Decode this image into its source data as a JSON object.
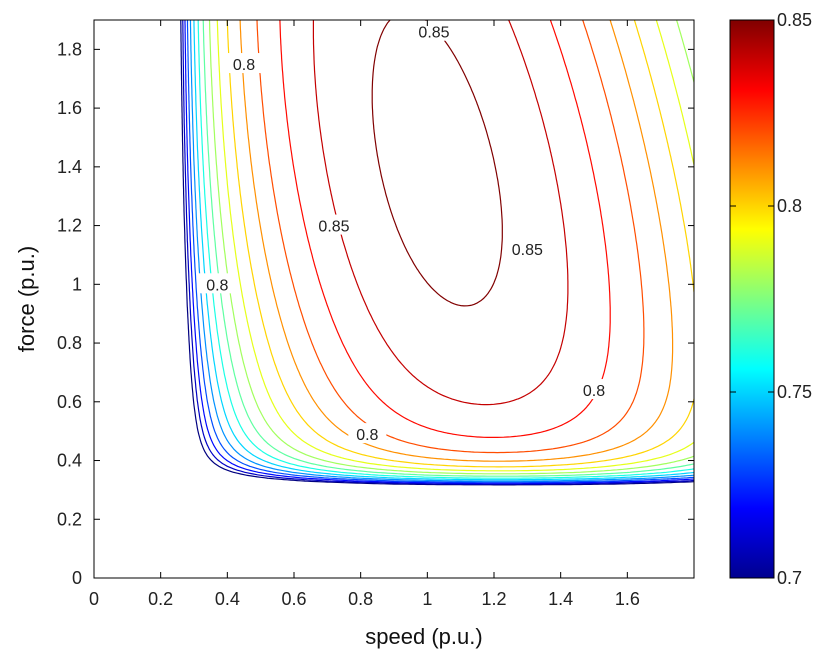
{
  "chart_data": {
    "type": "contour",
    "title": "",
    "xlabel": "speed (p.u.)",
    "ylabel": "force (p.u.)",
    "xlim": [
      0,
      1.8
    ],
    "ylim": [
      0,
      1.9
    ],
    "xticks": [
      "0",
      "0.2",
      "0.4",
      "0.6",
      "0.8",
      "1",
      "1.2",
      "1.4",
      "1.6"
    ],
    "yticks": [
      "0",
      "0.2",
      "0.4",
      "0.6",
      "0.8",
      "1",
      "1.2",
      "1.4",
      "1.6",
      "1.8"
    ],
    "grid": false,
    "colormap": "jet",
    "colorbar": {
      "min": 0.7,
      "max": 0.85,
      "ticks": [
        "0.7",
        "0.75",
        "0.8",
        "0.85"
      ],
      "position": "right"
    },
    "contour_levels": [
      0.7,
      0.71,
      0.72,
      0.73,
      0.74,
      0.75,
      0.76,
      0.77,
      0.78,
      0.79,
      0.8,
      0.81,
      0.82,
      0.83,
      0.84,
      0.85
    ],
    "peak": {
      "x": 0.98,
      "y": 1.42,
      "value": 0.86
    },
    "contour_labels": [
      {
        "text": "0.85",
        "x": 1.02,
        "y": 1.86
      },
      {
        "text": "0.85",
        "x": 0.72,
        "y": 1.2
      },
      {
        "text": "0.85",
        "x": 1.3,
        "y": 1.12
      },
      {
        "text": "0.8",
        "x": 0.45,
        "y": 1.75
      },
      {
        "text": "0.8",
        "x": 0.37,
        "y": 1.0
      },
      {
        "text": "0.8",
        "x": 0.82,
        "y": 0.49
      },
      {
        "text": "0.8",
        "x": 1.5,
        "y": 0.64
      }
    ]
  }
}
